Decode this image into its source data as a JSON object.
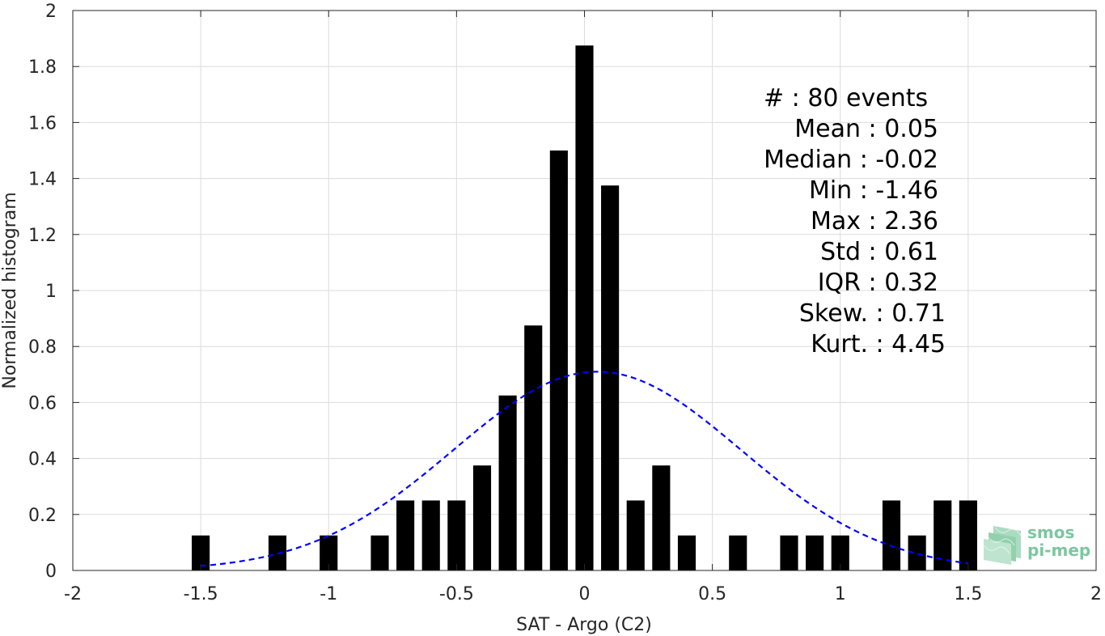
{
  "chart_data": {
    "type": "bar",
    "title": "",
    "xlabel": "SAT - Argo (C2)",
    "ylabel": "Normalized histogram",
    "xlim": [
      -2,
      2
    ],
    "ylim": [
      0,
      2
    ],
    "grid": true,
    "x_ticks": [
      "-2",
      "-1.5",
      "-1",
      "-0.5",
      "0",
      "0.5",
      "1",
      "1.5",
      "2"
    ],
    "y_ticks": [
      "0",
      "0.2",
      "0.4",
      "0.6",
      "0.8",
      "1",
      "1.2",
      "1.4",
      "1.6",
      "1.8",
      "2"
    ],
    "bar_width": 0.07,
    "bars": [
      {
        "x": -1.5,
        "y": 0.125
      },
      {
        "x": -1.2,
        "y": 0.125
      },
      {
        "x": -1.0,
        "y": 0.125
      },
      {
        "x": -0.8,
        "y": 0.125
      },
      {
        "x": -0.7,
        "y": 0.25
      },
      {
        "x": -0.6,
        "y": 0.25
      },
      {
        "x": -0.5,
        "y": 0.25
      },
      {
        "x": -0.4,
        "y": 0.375
      },
      {
        "x": -0.3,
        "y": 0.625
      },
      {
        "x": -0.2,
        "y": 0.875
      },
      {
        "x": -0.1,
        "y": 1.5
      },
      {
        "x": 0.0,
        "y": 1.875
      },
      {
        "x": 0.1,
        "y": 1.375
      },
      {
        "x": 0.2,
        "y": 0.25
      },
      {
        "x": 0.3,
        "y": 0.375
      },
      {
        "x": 0.4,
        "y": 0.125
      },
      {
        "x": 0.6,
        "y": 0.125
      },
      {
        "x": 0.8,
        "y": 0.125
      },
      {
        "x": 0.9,
        "y": 0.125
      },
      {
        "x": 1.0,
        "y": 0.125
      },
      {
        "x": 1.2,
        "y": 0.25
      },
      {
        "x": 1.3,
        "y": 0.125
      },
      {
        "x": 1.4,
        "y": 0.25
      },
      {
        "x": 1.5,
        "y": 0.25
      }
    ],
    "fit_curve": {
      "style": "dashed",
      "color": "#0000ff",
      "x_range": [
        -1.5,
        1.5
      ],
      "peak_x": 0.05,
      "peak_y": 0.71
    },
    "bar_color": "#000000"
  },
  "stats": {
    "events": "#  : 80 events",
    "mean": "Mean : 0.05",
    "median": "Median : -0.02",
    "min": "Min : -1.46",
    "max": "Max : 2.36",
    "std": "Std : 0.61",
    "iqr": "IQR : 0.32",
    "skew": "Skew. : 0.71",
    "kurt": "Kurt. : 4.45"
  },
  "logo": {
    "line1": "smos",
    "line2": "pi-mep",
    "color": "#5fb88a"
  }
}
